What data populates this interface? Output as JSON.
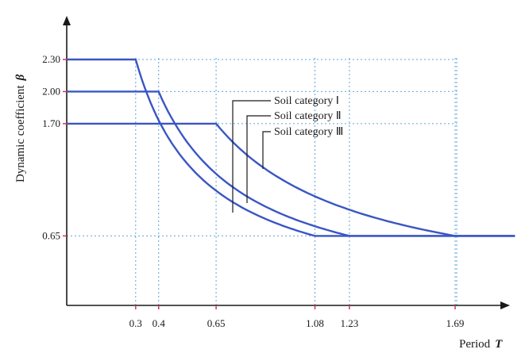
{
  "chart_data": {
    "type": "line",
    "title": "",
    "xlabel": "Period",
    "xlabel_symbol": "T",
    "ylabel": "Dynamic coefficient",
    "ylabel_symbol": "β",
    "xlim": [
      0,
      2.0
    ],
    "ylim": [
      0,
      2.6
    ],
    "x_ticks": [
      {
        "value": 0.3,
        "label": "0.3"
      },
      {
        "value": 0.4,
        "label": "0.4"
      },
      {
        "value": 0.65,
        "label": "0.65"
      },
      {
        "value": 1.08,
        "label": "1.08"
      },
      {
        "value": 1.23,
        "label": "1.23"
      },
      {
        "value": 1.69,
        "label": "1.69"
      }
    ],
    "y_ticks": [
      {
        "value": 0.65,
        "label": "0.65"
      },
      {
        "value": 1.7,
        "label": "1.70"
      },
      {
        "value": 2.0,
        "label": "2.00"
      },
      {
        "value": 2.3,
        "label": "2.30"
      }
    ],
    "grid": true,
    "grid_color": "#5da3d8",
    "line_color": "#3a56c4",
    "tick_color": "#e0304a",
    "series": [
      {
        "name": "Soil category Ⅰ",
        "beta_max": 2.3,
        "Tg": 0.3,
        "beta_min": 0.65,
        "T_end": 1.08
      },
      {
        "name": "Soil category Ⅱ",
        "beta_max": 2.0,
        "Tg": 0.4,
        "beta_min": 0.65,
        "T_end": 1.23
      },
      {
        "name": "Soil category Ⅲ",
        "beta_max": 1.7,
        "Tg": 0.65,
        "beta_min": 0.65,
        "T_end": 1.69
      }
    ],
    "x_max_extent": 2.0
  }
}
